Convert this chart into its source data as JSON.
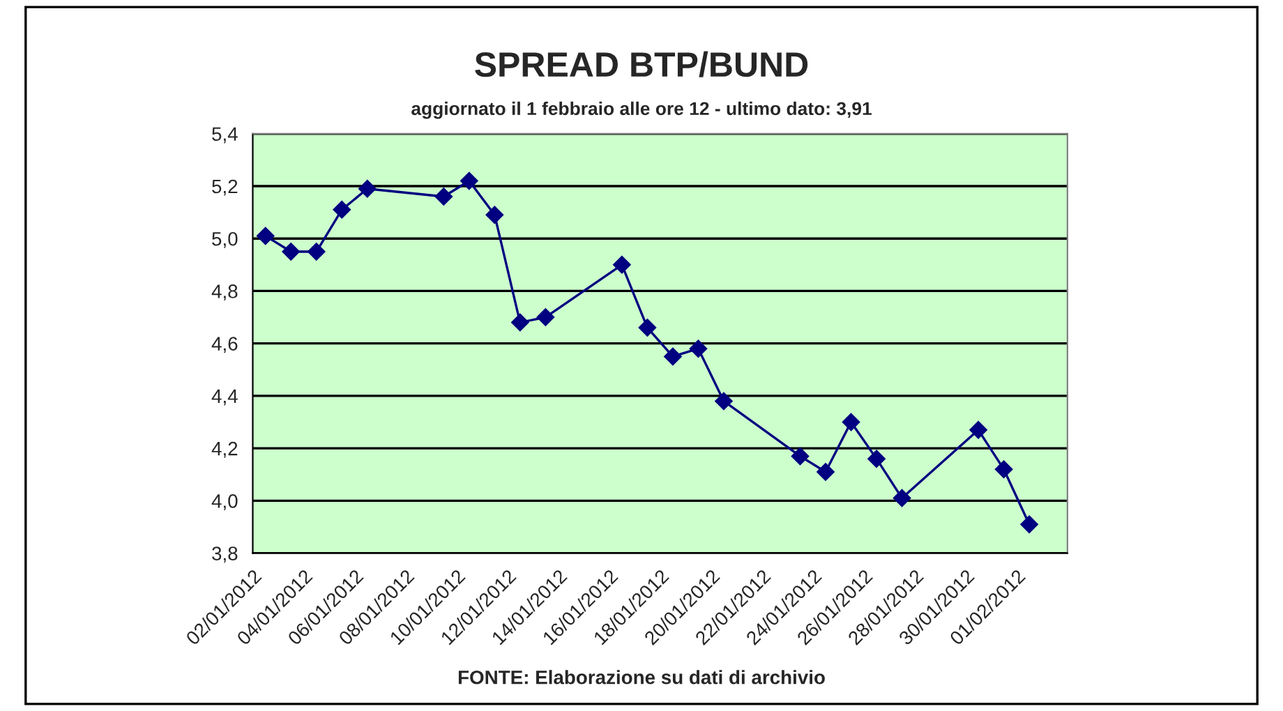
{
  "chart_data": {
    "type": "line",
    "title": "SPREAD BTP/BUND",
    "subtitle": "aggiornato il 1 febbraio alle ore 12 - ultimo dato: 3,91",
    "annotations": [
      "FONTE: Elaborazione su dati di archivio"
    ],
    "x": [
      "2012-01-02T12:00",
      "2012-01-03T12:00",
      "2012-01-04T12:00",
      "2012-01-05T12:00",
      "2012-01-06T12:00",
      "2012-01-09T12:00",
      "2012-01-10T12:00",
      "2012-01-11T12:00",
      "2012-01-12T12:00",
      "2012-01-13T12:00",
      "2012-01-16T12:00",
      "2012-01-17T12:00",
      "2012-01-18T12:00",
      "2012-01-19T12:00",
      "2012-01-20T12:00",
      "2012-01-23T12:00",
      "2012-01-24T12:00",
      "2012-01-25T12:00",
      "2012-01-26T12:00",
      "2012-01-27T12:00",
      "2012-01-30T12:00",
      "2012-01-31T12:00",
      "2012-02-01T12:00"
    ],
    "series": [
      {
        "color": "#000080",
        "values": [
          5.01,
          4.95,
          4.95,
          5.11,
          5.19,
          5.16,
          5.22,
          5.09,
          4.68,
          4.7,
          4.9,
          4.66,
          4.55,
          4.58,
          4.38,
          4.17,
          4.11,
          4.3,
          4.16,
          4.01,
          4.27,
          4.12,
          3.91
        ]
      }
    ],
    "xlim": [
      "2012-01-02",
      "2012-02-03"
    ],
    "xticks": [
      {
        "value": "2012-01-02",
        "label": "02/01/2012"
      },
      {
        "value": "2012-01-04",
        "label": "04/01/2012"
      },
      {
        "value": "2012-01-06",
        "label": "06/01/2012"
      },
      {
        "value": "2012-01-08",
        "label": "08/01/2012"
      },
      {
        "value": "2012-01-10",
        "label": "10/01/2012"
      },
      {
        "value": "2012-01-12",
        "label": "12/01/2012"
      },
      {
        "value": "2012-01-14",
        "label": "14/01/2012"
      },
      {
        "value": "2012-01-16",
        "label": "16/01/2012"
      },
      {
        "value": "2012-01-18",
        "label": "18/01/2012"
      },
      {
        "value": "2012-01-20",
        "label": "20/01/2012"
      },
      {
        "value": "2012-01-22",
        "label": "22/01/2012"
      },
      {
        "value": "2012-01-24",
        "label": "24/01/2012"
      },
      {
        "value": "2012-01-26",
        "label": "26/01/2012"
      },
      {
        "value": "2012-01-28",
        "label": "28/01/2012"
      },
      {
        "value": "2012-01-30",
        "label": "30/01/2012"
      },
      {
        "value": "2012-02-01",
        "label": "01/02/2012"
      },
      {
        "value": "2012-02-03",
        "label": null
      }
    ],
    "ylim": [
      3.8,
      5.4
    ],
    "yticks": [
      {
        "value": 3.8,
        "label": "3,8"
      },
      {
        "value": 4.0,
        "label": "4,0"
      },
      {
        "value": 4.2,
        "label": "4,2"
      },
      {
        "value": 4.4,
        "label": "4,4"
      },
      {
        "value": 4.6,
        "label": "4,6"
      },
      {
        "value": 4.8,
        "label": "4,8"
      },
      {
        "value": 5.0,
        "label": "5,0"
      },
      {
        "value": 5.2,
        "label": "5,2"
      },
      {
        "value": 5.4,
        "label": "5,4"
      }
    ],
    "grid": "y",
    "marker": "diamond",
    "line_style": "solid"
  }
}
